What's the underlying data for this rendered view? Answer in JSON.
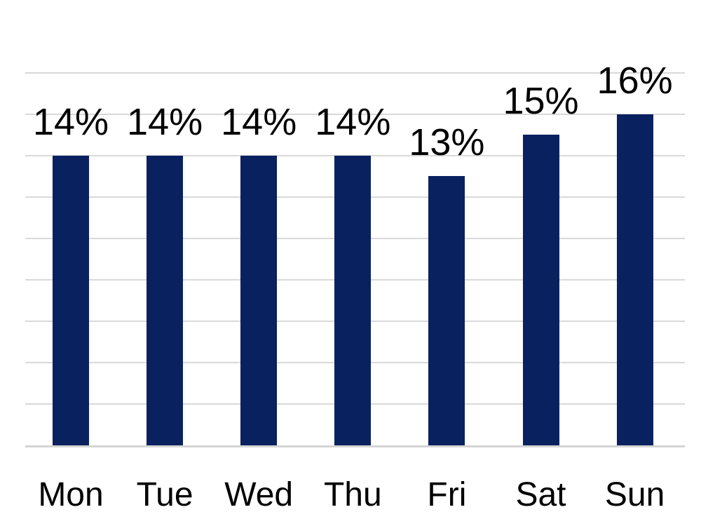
{
  "chart_data": {
    "type": "bar",
    "title": "",
    "xlabel": "",
    "ylabel": "",
    "categories": [
      "Mon",
      "Tue",
      "Wed",
      "Thu",
      "Fri",
      "Sat",
      "Sun"
    ],
    "values": [
      14,
      14,
      14,
      14,
      13,
      15,
      16
    ],
    "labels": [
      "14%",
      "14%",
      "14%",
      "14%",
      "13%",
      "15%",
      "16%"
    ],
    "unit": "%",
    "ylim": [
      0,
      18
    ],
    "gridline_step": 2,
    "grid": true,
    "legend": "none",
    "y_axis_tick_labels_visible": false,
    "bar_color": "#0A2160",
    "gridline_color": "#D9D9D9",
    "axis_line_color": "#D4D4D4",
    "label_color": "#000000",
    "background_color": "#FFFFFF"
  }
}
